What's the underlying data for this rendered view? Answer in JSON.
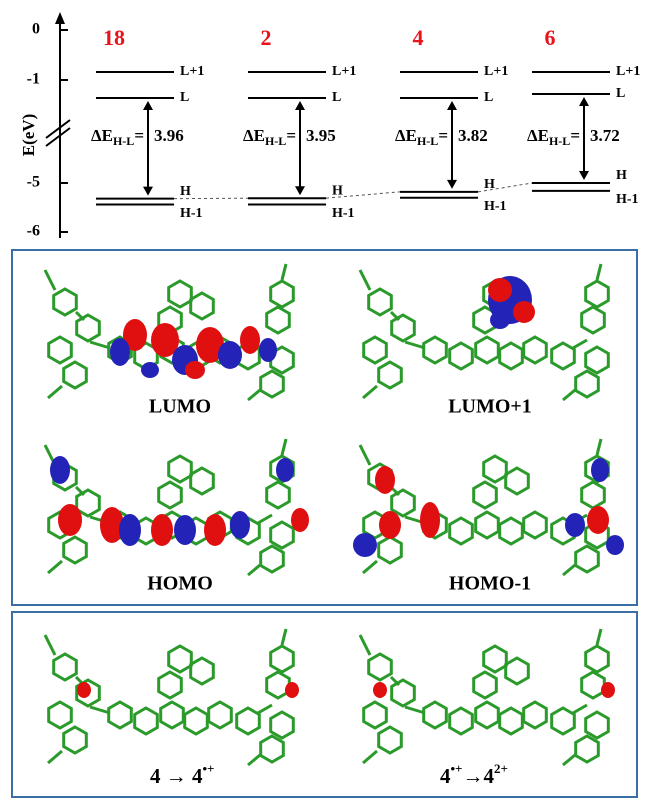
{
  "energy_diagram": {
    "y_label": "E(eV)",
    "yticks": [
      0,
      -1,
      -5,
      -6
    ],
    "gap_symbol": "ΔE",
    "gap_subscript": "H-L",
    "gap_equals": "=",
    "compounds": [
      {
        "name": "18",
        "gap": 3.96,
        "levels": [
          {
            "label": "L+1",
            "energy": -0.84
          },
          {
            "label": "L",
            "energy": -1.36
          },
          {
            "label": "H",
            "energy": -5.32
          },
          {
            "label": "H-1",
            "energy": -5.44
          }
        ]
      },
      {
        "name": "2",
        "gap": 3.95,
        "levels": [
          {
            "label": "L+1",
            "energy": -0.84
          },
          {
            "label": "L",
            "energy": -1.36
          },
          {
            "label": "H",
            "energy": -5.31
          },
          {
            "label": "H-1",
            "energy": -5.44
          }
        ]
      },
      {
        "name": "4",
        "gap": 3.82,
        "levels": [
          {
            "label": "L+1",
            "energy": -0.84
          },
          {
            "label": "L",
            "energy": -1.36
          },
          {
            "label": "H",
            "energy": -5.18
          },
          {
            "label": "H-1",
            "energy": -5.3
          }
        ]
      },
      {
        "name": "6",
        "gap": 3.72,
        "levels": [
          {
            "label": "L+1",
            "energy": -0.84
          },
          {
            "label": "L",
            "energy": -1.28
          },
          {
            "label": "H",
            "energy": -5.0
          },
          {
            "label": "H-1",
            "energy": -5.16
          }
        ]
      }
    ]
  },
  "orbital_panel": {
    "labels": [
      "LUMO",
      "LUMO+1",
      "HOMO",
      "HOMO-1"
    ]
  },
  "spin_panel": {
    "transitions": [
      {
        "from": "4",
        "arrow": "→",
        "to": "4",
        "to_charge": "•+"
      },
      {
        "from": "4",
        "from_charge": "•+",
        "arrow": "→",
        "to": "4",
        "to_charge": "2+"
      }
    ]
  }
}
